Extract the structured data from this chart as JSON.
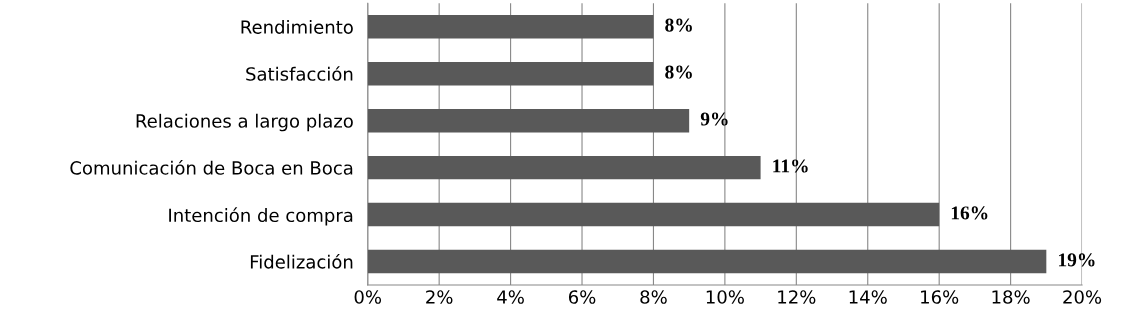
{
  "chart_data": {
    "type": "bar",
    "orientation": "horizontal",
    "categories": [
      "Rendimiento",
      "Satisfacción",
      "Relaciones a largo plazo",
      "Comunicación de Boca en Boca",
      "Intención de compra",
      "Fidelización"
    ],
    "values": [
      8,
      8,
      9,
      11,
      16,
      19
    ],
    "value_labels": [
      "8%",
      "8%",
      "9%",
      "11%",
      "16%",
      "19%"
    ],
    "color": "#595959",
    "xlim": [
      0,
      20
    ],
    "xticks": [
      {
        "value": 0,
        "label": "0%"
      },
      {
        "value": 2,
        "label": "2%"
      },
      {
        "value": 4,
        "label": "4%"
      },
      {
        "value": 6,
        "label": "6%"
      },
      {
        "value": 8,
        "label": "8%"
      },
      {
        "value": 10,
        "label": "10%"
      },
      {
        "value": 12,
        "label": "12%"
      },
      {
        "value": 14,
        "label": "14%"
      },
      {
        "value": 16,
        "label": "16%"
      },
      {
        "value": 18,
        "label": "18%"
      },
      {
        "value": 20,
        "label": "20%"
      }
    ],
    "grid": "x"
  }
}
